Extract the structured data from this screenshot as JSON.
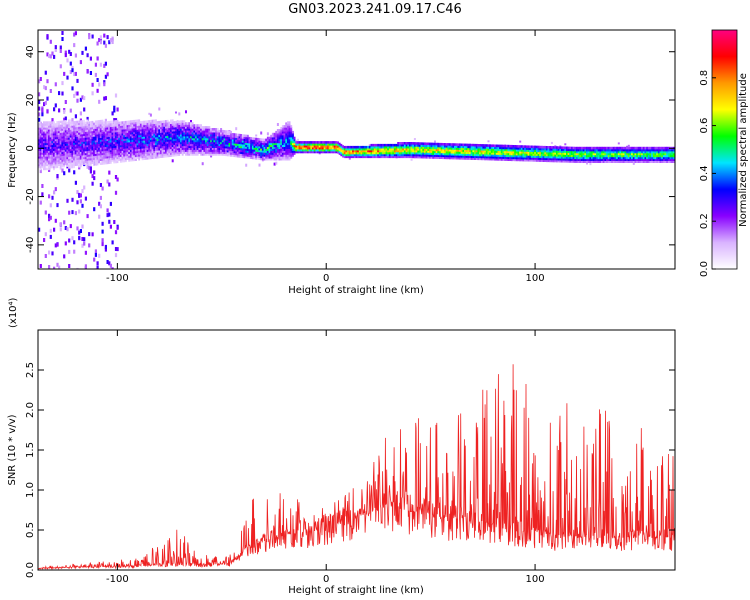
{
  "title": "GN03.2023.241.09.17.C46",
  "chart_data": [
    {
      "type": "heatmap",
      "xlabel": "Height of straight line (km)",
      "ylabel": "Frequency (Hz)",
      "xlim": [
        -138,
        167
      ],
      "ylim": [
        -50,
        49
      ],
      "x_ticks": [
        -100,
        0,
        100
      ],
      "y_ticks": [
        -40,
        -20,
        0,
        20,
        40
      ],
      "colorbar": {
        "label": "Normalized spectral amplitude",
        "range": [
          0.0,
          1.0
        ],
        "ticks": [
          0.0,
          0.2,
          0.4,
          0.6,
          0.8
        ],
        "tick_labels": [
          "0.0",
          "0.2",
          "0.4",
          "0.6",
          "0.8"
        ],
        "colors": [
          "#ffffff",
          "#d9b3ff",
          "#8800ff",
          "#0000ff",
          "#00e5ff",
          "#00ff00",
          "#ffff00",
          "#ff9900",
          "#ff0000",
          "#ff0080"
        ]
      },
      "band_profile": [
        {
          "x": -130,
          "center": 2,
          "halfwidth": 10,
          "amp": 0.3
        },
        {
          "x": -110,
          "center": 3,
          "halfwidth": 9,
          "amp": 0.32
        },
        {
          "x": -90,
          "center": 4,
          "halfwidth": 8,
          "amp": 0.38
        },
        {
          "x": -70,
          "center": 5,
          "halfwidth": 7,
          "amp": 0.42
        },
        {
          "x": -50,
          "center": 3,
          "halfwidth": 5,
          "amp": 0.45
        },
        {
          "x": -30,
          "center": 0,
          "halfwidth": 4,
          "amp": 0.55
        },
        {
          "x": -18,
          "center": 4,
          "halfwidth": 8,
          "amp": 0.4
        },
        {
          "x": -15,
          "center": 1,
          "halfwidth": 2,
          "amp": 0.95
        },
        {
          "x": 5,
          "center": 1,
          "halfwidth": 2,
          "amp": 0.95
        },
        {
          "x": 8,
          "center": -1,
          "halfwidth": 2,
          "amp": 0.9
        },
        {
          "x": 40,
          "center": 0,
          "halfwidth": 3,
          "amp": 0.75
        },
        {
          "x": 80,
          "center": -1,
          "halfwidth": 3,
          "amp": 0.7
        },
        {
          "x": 120,
          "center": -2,
          "halfwidth": 3,
          "amp": 0.65
        },
        {
          "x": 167,
          "center": -2,
          "halfwidth": 3,
          "amp": 0.6
        }
      ]
    },
    {
      "type": "line",
      "xlabel": "Height of straight line (km)",
      "ylabel": "SNR (10 * v/v)",
      "y_multiplier_label": "(x10⁴)",
      "xlim": [
        -138,
        167
      ],
      "ylim": [
        0,
        3.0
      ],
      "x_ticks": [
        -100,
        0,
        100
      ],
      "y_ticks": [
        0.0,
        0.5,
        1.0,
        1.5,
        2.0,
        2.5
      ],
      "y_tick_labels": [
        "0.0",
        "0.5",
        "1.0",
        "1.5",
        "2.0",
        "2.5"
      ],
      "color": "#ee2222",
      "envelope": [
        {
          "x": -138,
          "base": 0.02,
          "peak": 0.04
        },
        {
          "x": -110,
          "base": 0.04,
          "peak": 0.1
        },
        {
          "x": -90,
          "base": 0.05,
          "peak": 0.15
        },
        {
          "x": -70,
          "base": 0.08,
          "peak": 0.55
        },
        {
          "x": -60,
          "base": 0.06,
          "peak": 0.2
        },
        {
          "x": -45,
          "base": 0.08,
          "peak": 0.25
        },
        {
          "x": -40,
          "base": 0.2,
          "peak": 0.8
        },
        {
          "x": -30,
          "base": 0.35,
          "peak": 1.1
        },
        {
          "x": -18,
          "base": 0.45,
          "peak": 1.1
        },
        {
          "x": -10,
          "base": 0.45,
          "peak": 0.75
        },
        {
          "x": 10,
          "base": 0.6,
          "peak": 0.95
        },
        {
          "x": 20,
          "base": 0.7,
          "peak": 1.2
        },
        {
          "x": 30,
          "base": 0.8,
          "peak": 1.9
        },
        {
          "x": 60,
          "base": 0.6,
          "peak": 1.9
        },
        {
          "x": 88,
          "base": 0.5,
          "peak": 2.95
        },
        {
          "x": 110,
          "base": 0.4,
          "peak": 2.1
        },
        {
          "x": 140,
          "base": 0.4,
          "peak": 2.1
        },
        {
          "x": 167,
          "base": 0.4,
          "peak": 1.6
        }
      ]
    }
  ]
}
